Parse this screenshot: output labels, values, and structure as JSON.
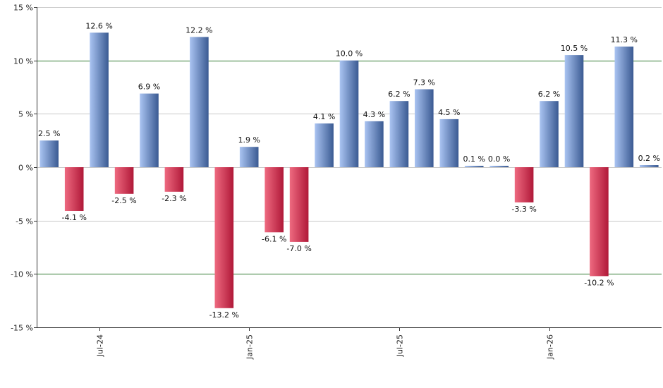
{
  "chart_data": {
    "type": "bar",
    "title": "",
    "xlabel": "",
    "ylabel": "",
    "ylim": [
      -15,
      15
    ],
    "y_ticks": [
      15,
      10,
      5,
      0,
      -5,
      -10,
      -15
    ],
    "y_tick_labels": [
      "15 %",
      "10 %",
      "5 %",
      "0 %",
      "-5 %",
      "-10 %",
      "-15 %"
    ],
    "highlight_lines": [
      10,
      -10
    ],
    "x_tick_labels": [
      {
        "label": "Jul-24",
        "index": 2
      },
      {
        "label": "Jan-25",
        "index": 8
      },
      {
        "label": "Jul-25",
        "index": 14
      },
      {
        "label": "Jan-26",
        "index": 20
      }
    ],
    "values": [
      2.5,
      -4.1,
      12.6,
      -2.5,
      6.9,
      -2.3,
      12.2,
      -13.2,
      1.9,
      -6.1,
      -7.0,
      4.1,
      10.0,
      4.3,
      6.2,
      7.3,
      4.5,
      0.1,
      0.0,
      -3.3,
      6.2,
      10.5,
      -10.2,
      11.3,
      0.2
    ],
    "labels": [
      "2.5 %",
      "-4.1 %",
      "12.6 %",
      "-2.5 %",
      "6.9 %",
      "-2.3 %",
      "12.2 %",
      "-13.2 %",
      "1.9 %",
      "-6.1 %",
      "-7.0 %",
      "4.1 %",
      "10.0 %",
      "4.3 %",
      "6.2 %",
      "7.3 %",
      "4.5 %",
      "0.1 %",
      "0.0 %",
      "-3.3 %",
      "6.2 %",
      "10.5 %",
      "-10.2 %",
      "11.3 %",
      "0.2 %"
    ],
    "grid": true,
    "colors": {
      "positive_light": "#aac4f2",
      "positive_dark": "#3a5a92",
      "negative_light": "#ee6a80",
      "negative_dark": "#b01838",
      "gridline": "#c8c8c8",
      "highlight_line": "#2f7a2f",
      "axis": "#333333"
    }
  }
}
